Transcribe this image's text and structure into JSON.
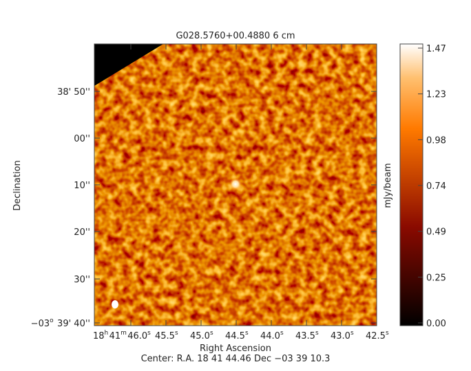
{
  "title": "G028.5760+00.4880 6 cm",
  "x_axis_label": "Right Ascension",
  "y_axis_label": "Declination",
  "colorbar_label": "mJy/beam",
  "colorbar_ticks": [
    "0.00",
    "0.25",
    "0.49",
    "0.74",
    "0.98",
    "1.23",
    "1.47"
  ],
  "ra_ticks": [
    [
      [
        "18",
        "h"
      ],
      [
        "41",
        "m"
      ],
      [
        "46.0",
        "s"
      ]
    ],
    [
      [
        "45.5",
        "s"
      ]
    ],
    [
      [
        "45.0",
        "s"
      ]
    ],
    [
      [
        "44.5",
        "s"
      ]
    ],
    [
      [
        "44.0",
        "s"
      ]
    ],
    [
      [
        "43.5",
        "s"
      ]
    ],
    [
      [
        "43.0",
        "s"
      ]
    ],
    [
      [
        "42.5",
        "s"
      ]
    ]
  ],
  "dec_ticks": [
    [
      [
        "38' 50''",
        ""
      ]
    ],
    [
      [
        "00''",
        ""
      ]
    ],
    [
      [
        "10''",
        ""
      ]
    ],
    [
      [
        "20''",
        ""
      ]
    ],
    [
      [
        "30''",
        ""
      ]
    ],
    [
      [
        "−03",
        "o"
      ],
      [
        " 39' 40''",
        ""
      ]
    ]
  ],
  "footer": "Center:  R.A. 18 41 44.46     Dec  −03 39 10.3"
}
